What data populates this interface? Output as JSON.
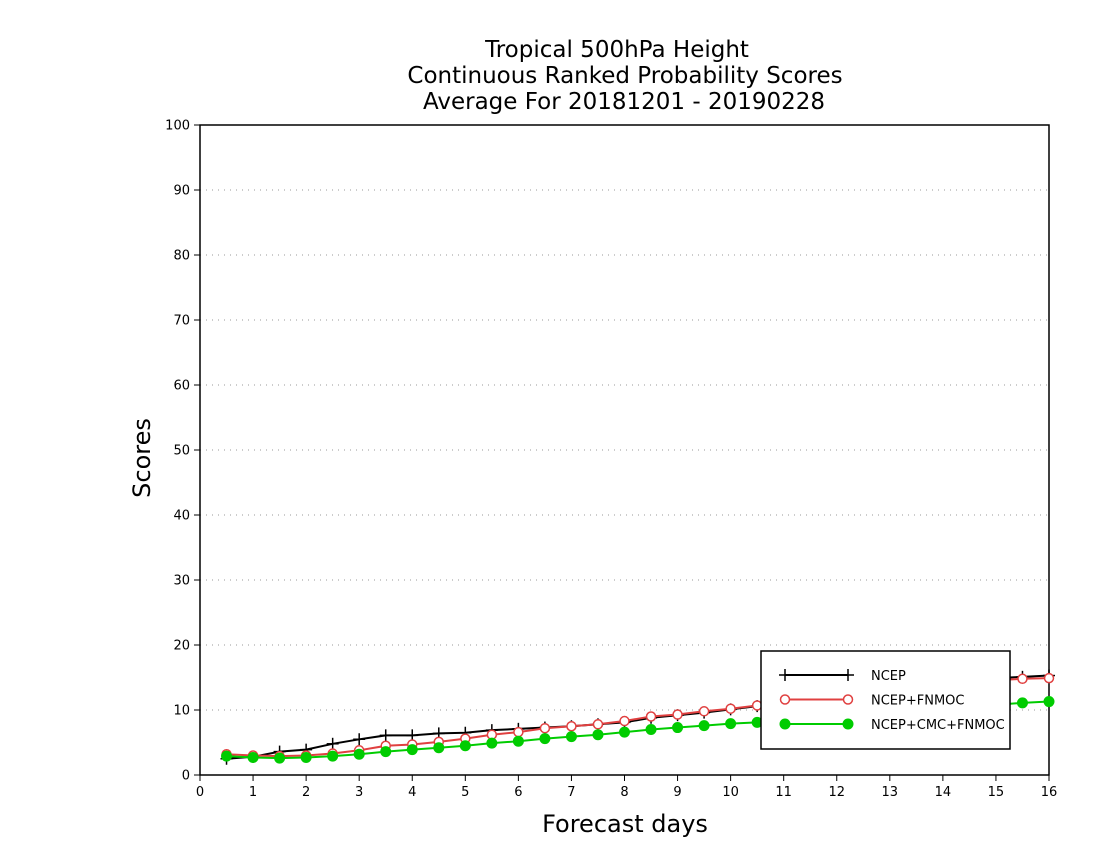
{
  "chart_data": {
    "type": "line",
    "title_lines": [
      "Tropical 500hPa Height",
      "Continuous Ranked Probability Scores",
      "Average For 20181201 - 20190228"
    ],
    "xlabel": "Forecast days",
    "ylabel": "Scores",
    "xlim": [
      0,
      16
    ],
    "ylim": [
      0,
      100
    ],
    "x_ticks": [
      0,
      1,
      2,
      3,
      4,
      5,
      6,
      7,
      8,
      9,
      10,
      11,
      12,
      13,
      14,
      15,
      16
    ],
    "y_ticks": [
      0,
      10,
      20,
      30,
      40,
      50,
      60,
      70,
      80,
      90,
      100
    ],
    "grid": "horizontal dotted",
    "legend_position": "bottom-right",
    "x": [
      0.5,
      1,
      1.5,
      2,
      2.5,
      3,
      3.5,
      4,
      4.5,
      5,
      5.5,
      6,
      6.5,
      7,
      7.5,
      8,
      8.5,
      9,
      9.5,
      10,
      10.5,
      11,
      11.5,
      12,
      12.5,
      13,
      13.5,
      14,
      14.5,
      15,
      15.5,
      16
    ],
    "series": [
      {
        "name": "NCEP",
        "color": "#000000",
        "marker": "plus",
        "values": [
          2.5,
          2.8,
          3.6,
          3.9,
          4.8,
          5.5,
          6.1,
          6.1,
          6.4,
          6.5,
          6.9,
          7.1,
          7.3,
          7.5,
          7.8,
          8.1,
          8.8,
          9.2,
          9.6,
          10.1,
          10.6,
          11.0,
          11.5,
          12.0,
          12.5,
          13.0,
          13.5,
          14.0,
          14.4,
          14.9,
          15.1,
          15.3
        ]
      },
      {
        "name": "NCEP+FNMOC",
        "color": "#e04040",
        "marker": "open-circle",
        "values": [
          3.2,
          3.0,
          2.9,
          3.0,
          3.3,
          3.8,
          4.5,
          4.7,
          5.1,
          5.6,
          6.2,
          6.6,
          7.2,
          7.5,
          7.8,
          8.3,
          9.0,
          9.3,
          9.8,
          10.2,
          10.7,
          11.1,
          11.5,
          12.0,
          12.4,
          12.9,
          13.4,
          13.8,
          14.2,
          14.6,
          14.8,
          14.9
        ]
      },
      {
        "name": "NCEP+CMC+FNMOC",
        "color": "#00cc00",
        "marker": "filled-circle",
        "values": [
          2.9,
          2.7,
          2.6,
          2.7,
          2.9,
          3.2,
          3.6,
          3.9,
          4.2,
          4.5,
          4.9,
          5.2,
          5.6,
          5.9,
          6.2,
          6.6,
          7.0,
          7.3,
          7.6,
          7.9,
          8.1,
          8.4,
          8.7,
          9.0,
          9.3,
          9.6,
          9.9,
          10.2,
          10.5,
          10.8,
          11.1,
          11.3
        ]
      }
    ]
  }
}
